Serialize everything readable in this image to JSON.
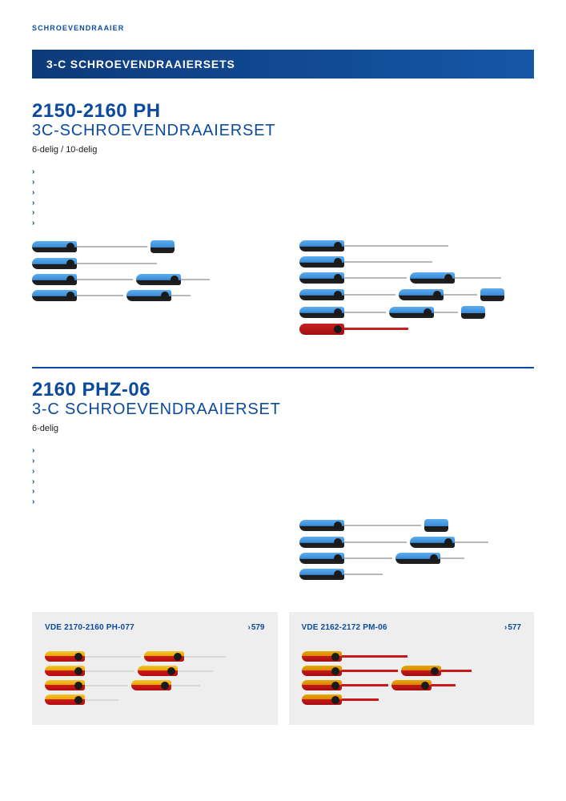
{
  "breadcrumb": "SCHROEVENDRAAIER",
  "banner": "3-C SCHROEVENDRAAIERSETS",
  "colors": {
    "brand": "#0b4a9e",
    "banner_grad_from": "#0d3a7a",
    "banner_grad_to": "#1557a8",
    "handle_blue_top": "#5cacee",
    "handle_blue_mid": "#3a8cd8",
    "handle_black": "#1a1a1a",
    "shaft_grey": "#b8b8b8",
    "red": "#c92020",
    "vde_yellow": "#f4c430",
    "promo_bg": "#eeeeee"
  },
  "product1": {
    "code": "2150-2160 PH",
    "title": "3C-SCHROEVENDRAAIERSET",
    "sub": "6-delig / 10-delig",
    "bullet_count": 6,
    "sets": {
      "left": [
        [
          {
            "shaft": 88
          },
          {
            "shaft": 0,
            "stub": true
          }
        ],
        [
          {
            "shaft": 100
          }
        ],
        [
          {
            "shaft": 70
          },
          {
            "shaft": 36
          }
        ],
        [
          {
            "shaft": 58
          },
          {
            "shaft": 24
          }
        ]
      ],
      "right": [
        [
          {
            "shaft": 130
          }
        ],
        [
          {
            "shaft": 110
          }
        ],
        [
          {
            "shaft": 78
          },
          {
            "shaft": 58
          }
        ],
        [
          {
            "shaft": 64
          },
          {
            "shaft": 42
          },
          {
            "shaft": 0,
            "stub": true
          }
        ],
        [
          {
            "shaft": 52
          },
          {
            "shaft": 30
          },
          {
            "shaft": 0,
            "stub": true
          }
        ],
        [
          {
            "shaft": 80,
            "red": true
          }
        ]
      ]
    }
  },
  "product2": {
    "code": "2160 PHZ-06",
    "title": "3-C SCHROEVENDRAAIERSET",
    "sub": "6-delig",
    "bullet_count": 6,
    "set": [
      [
        {
          "shaft": 96
        },
        {
          "shaft": 0,
          "stub": true
        }
      ],
      [
        {
          "shaft": 78
        },
        {
          "shaft": 42
        }
      ],
      [
        {
          "shaft": 60
        },
        {
          "shaft": 30
        }
      ],
      [
        {
          "shaft": 48
        }
      ]
    ]
  },
  "promos": [
    {
      "name": "VDE 2170-2160 PH-077",
      "page": "579",
      "rows": [
        [
          {
            "shaft": 70
          },
          {
            "shaft": 52
          }
        ],
        [
          {
            "shaft": 62
          },
          {
            "shaft": 44
          }
        ],
        [
          {
            "shaft": 54
          },
          {
            "shaft": 36
          }
        ],
        [
          {
            "shaft": 42
          }
        ]
      ]
    },
    {
      "name": "VDE 2162-2172 PM-06",
      "page": "577",
      "rows": [
        [
          {
            "shaft": 82
          }
        ],
        [
          {
            "shaft": 70
          },
          {
            "shaft": 38
          }
        ],
        [
          {
            "shaft": 58
          },
          {
            "shaft": 30
          }
        ],
        [
          {
            "shaft": 46
          }
        ]
      ]
    }
  ]
}
